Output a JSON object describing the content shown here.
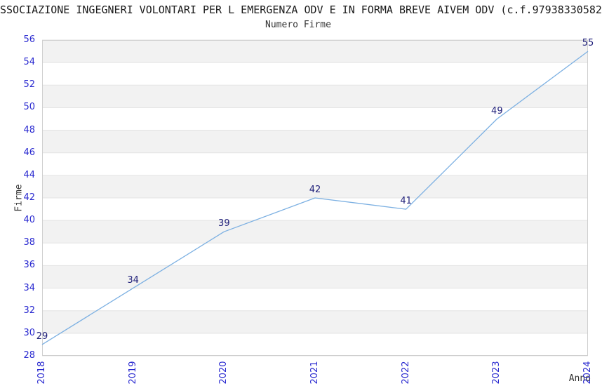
{
  "chart_data": {
    "type": "line",
    "title": "SSOCIAZIONE INGEGNERI VOLONTARI PER L EMERGENZA ODV E IN FORMA BREVE AIVEM ODV (c.f.97938330582",
    "subtitle": "Numero Firme",
    "xlabel": "Anno",
    "ylabel": "Firme",
    "categories": [
      "2018",
      "2019",
      "2020",
      "2021",
      "2022",
      "2023",
      "2024"
    ],
    "series": [
      {
        "name": "Numero Firme",
        "values": [
          29,
          34,
          39,
          42,
          41,
          49,
          55
        ]
      }
    ],
    "data_labels": [
      "29",
      "34",
      "39",
      "42",
      "41",
      "49",
      "55"
    ],
    "yticks": [
      28,
      30,
      32,
      34,
      36,
      38,
      40,
      42,
      44,
      46,
      48,
      50,
      52,
      54,
      56
    ],
    "ylim": [
      28,
      56
    ],
    "xlim_categories": [
      "2018",
      "2024"
    ],
    "grid": "horizontal-bands-alternating",
    "legend": "none",
    "colors": {
      "line": "#7cb0e2",
      "tick_label": "#2a2ad0",
      "data_label": "#20207a",
      "band": "#f2f2f2",
      "gridline": "#e3e3e3",
      "plot_border": "#cfcfcf",
      "title_text": "#1a1a1a",
      "axis_label_text": "#333333",
      "background": "#ffffff"
    }
  }
}
